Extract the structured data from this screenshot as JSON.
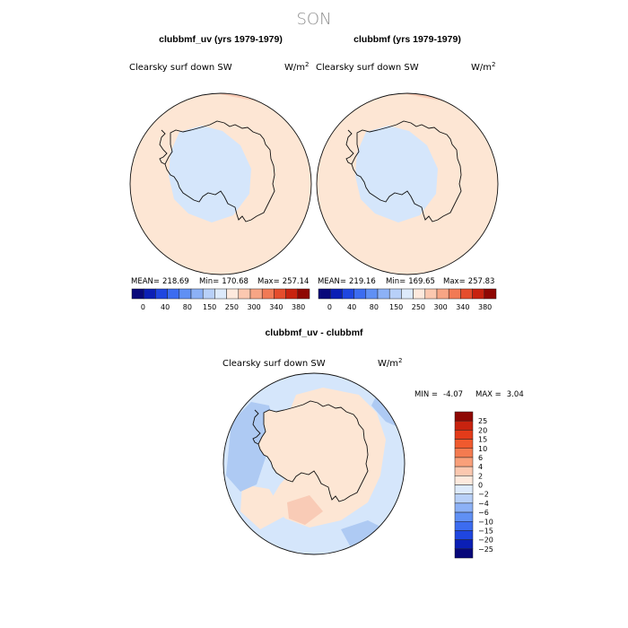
{
  "figure": {
    "suptitle": "SON"
  },
  "colors": {
    "land_fill_pos": "#fde6d4",
    "land_fill_neg": "#d5e6fb",
    "ocean_pos": "#fde6d4",
    "patch_pos": "#f8c8b6",
    "neg_light": "#cfe1fa",
    "neg_mid": "#aecaf3",
    "neg_dark": "#8fb3ea"
  },
  "chart_data": [
    {
      "type": "heatmap",
      "title": "clubbmf_uv (yrs 1979-1979)",
      "variable": "Clearsky surf down SW",
      "units": "W/m",
      "units_sup": "2",
      "stats": {
        "mean_label": "MEAN=",
        "mean": "218.69",
        "min_label": "Min=",
        "min": "170.68",
        "max_label": "Max=",
        "max": "257.14"
      },
      "colorbar": {
        "labels": [
          "0",
          "40",
          "80",
          "150",
          "250",
          "300",
          "340",
          "380"
        ],
        "colors": [
          "#08087a",
          "#0b1fb5",
          "#1f46e0",
          "#3c6cf0",
          "#6090f4",
          "#8cb1f6",
          "#b8d0f8",
          "#ddeafb",
          "#fde9dd",
          "#fbc8b0",
          "#f7a585",
          "#f17a55",
          "#e54d2c",
          "#c8230f",
          "#8f0703"
        ]
      }
    },
    {
      "type": "heatmap",
      "title": "clubbmf (yrs 1979-1979)",
      "variable": "Clearsky surf down SW",
      "units": "W/m",
      "units_sup": "2",
      "stats": {
        "mean_label": "MEAN=",
        "mean": "219.16",
        "min_label": "Min=",
        "min": "169.65",
        "max_label": "Max=",
        "max": "257.83"
      },
      "colorbar": {
        "labels": [
          "0",
          "40",
          "80",
          "150",
          "250",
          "300",
          "340",
          "380"
        ],
        "colors": [
          "#08087a",
          "#0b1fb5",
          "#1f46e0",
          "#3c6cf0",
          "#6090f4",
          "#8cb1f6",
          "#b8d0f8",
          "#ddeafb",
          "#fde9dd",
          "#fbc8b0",
          "#f7a585",
          "#f17a55",
          "#e54d2c",
          "#c8230f",
          "#8f0703"
        ]
      }
    },
    {
      "type": "heatmap",
      "title": "clubbmf_uv - clubbmf",
      "variable": "Clearsky surf down SW",
      "units": "W/m",
      "units_sup": "2",
      "stats": {
        "min_label": "MIN =",
        "min": "-4.07",
        "max_label": "MAX =",
        "max": "3.04"
      },
      "colorbar": {
        "labels": [
          "25",
          "20",
          "15",
          "10",
          "6",
          "4",
          "2",
          "0",
          "-2",
          "-4",
          "-6",
          "-10",
          "-15",
          "-20",
          "-25"
        ],
        "colors": [
          "#8f0703",
          "#c8230f",
          "#e33b1a",
          "#f05a2e",
          "#f47b50",
          "#f9a07a",
          "#fbc8b0",
          "#fde9dd",
          "#ddeafb",
          "#b8d0f8",
          "#8cb1f6",
          "#6090f4",
          "#3c6cf0",
          "#1f46e0",
          "#0b1fb5",
          "#08087a"
        ]
      }
    }
  ]
}
